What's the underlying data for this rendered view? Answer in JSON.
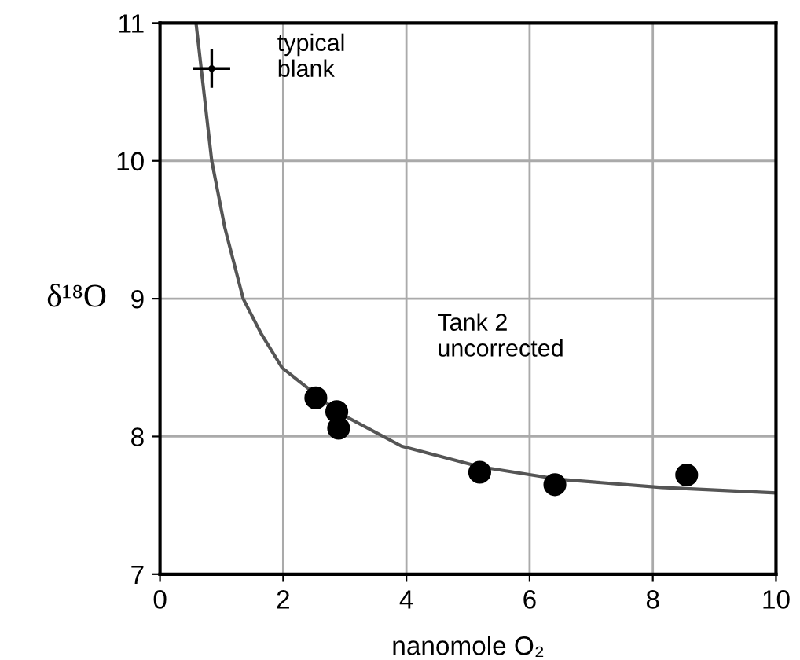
{
  "chart_data": {
    "type": "scatter",
    "xlabel": "nanomole O₂",
    "ylabel": "δ¹⁸O",
    "xlim": [
      0,
      10
    ],
    "ylim": [
      7,
      11
    ],
    "xticks": [
      0,
      2,
      4,
      6,
      8,
      10
    ],
    "yticks": [
      7,
      8,
      9,
      10,
      11
    ],
    "grid": true,
    "legend": false,
    "marker": "circle",
    "annotations": [
      "Tank 2\nuncorrected"
    ],
    "series": [
      {
        "type": "line",
        "color": "#555555",
        "marker": "none",
        "x": [
          0.59,
          0.84,
          1.05,
          1.35,
          1.65,
          1.98,
          2.91,
          3.92,
          5.19,
          6.46,
          8.14,
          10
        ],
        "values": [
          10.98,
          10.0,
          9.52,
          9.0,
          8.74,
          8.5,
          8.17,
          7.93,
          7.78,
          7.69,
          7.63,
          7.59
        ]
      },
      {
        "color": "#000000",
        "x": [
          2.53,
          2.87,
          2.9,
          5.19,
          6.41,
          8.55
        ],
        "values": [
          8.28,
          8.18,
          8.06,
          7.74,
          7.65,
          7.72
        ]
      },
      {
        "name": "typical\nblank",
        "color": "#000000",
        "x": [
          0.84
        ],
        "values": [
          10.67
        ],
        "errors": [
          0.14
        ],
        "xerrors": [
          0.3
        ]
      }
    ]
  }
}
